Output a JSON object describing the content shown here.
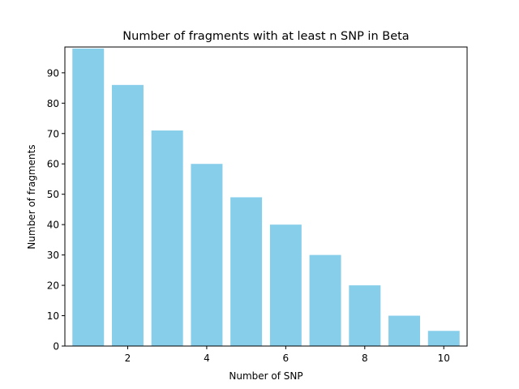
{
  "chart_data": {
    "type": "bar",
    "title": "Number of fragments with at least n SNP in Beta",
    "xlabel": "Number of SNP",
    "ylabel": "Number of fragments",
    "x": [
      1,
      2,
      3,
      4,
      5,
      6,
      7,
      8,
      9,
      10
    ],
    "values": [
      98,
      86,
      71,
      60,
      49,
      40,
      30,
      20,
      10,
      5
    ],
    "xlim": [
      0.41,
      10.59
    ],
    "ylim": [
      0,
      98.5
    ],
    "xticks": [
      2,
      4,
      6,
      8,
      10
    ],
    "yticks": [
      0,
      10,
      20,
      30,
      40,
      50,
      60,
      70,
      80,
      90
    ],
    "bar_color": "#87ceeb",
    "grid": false,
    "legend": "none"
  }
}
